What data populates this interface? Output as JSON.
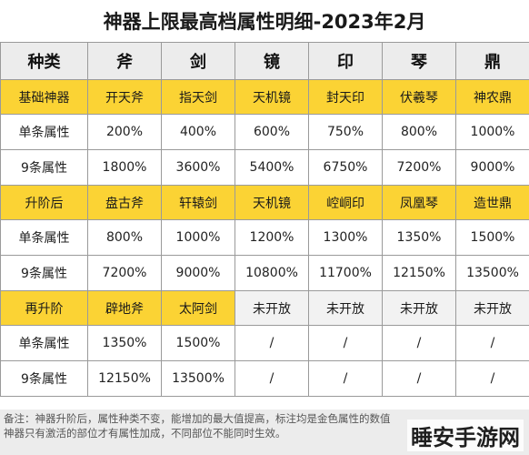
{
  "title": "神器上限最高档属性明细-2023年2月",
  "header": [
    "种类",
    "斧",
    "剑",
    "镜",
    "印",
    "琴",
    "鼎"
  ],
  "sections": [
    {
      "tier_label": "基础神器",
      "names": [
        "开天斧",
        "指天剑",
        "天机镜",
        "封天印",
        "伏羲琴",
        "神农鼎"
      ],
      "single_label": "单条属性",
      "single": [
        "200%",
        "400%",
        "600%",
        "750%",
        "800%",
        "1000%"
      ],
      "nine_label": "9条属性",
      "nine": [
        "1800%",
        "3600%",
        "5400%",
        "6750%",
        "7200%",
        "9000%"
      ]
    },
    {
      "tier_label": "升阶后",
      "names": [
        "盘古斧",
        "轩辕剑",
        "天机镜",
        "崆峒印",
        "凤凰琴",
        "造世鼎"
      ],
      "single_label": "单条属性",
      "single": [
        "800%",
        "1000%",
        "1200%",
        "1300%",
        "1350%",
        "1500%"
      ],
      "nine_label": "9条属性",
      "nine": [
        "7200%",
        "9000%",
        "10800%",
        "11700%",
        "12150%",
        "13500%"
      ]
    },
    {
      "tier_label": "再升阶",
      "names": [
        "辟地斧",
        "太阿剑",
        "未开放",
        "未开放",
        "未开放",
        "未开放"
      ],
      "single_label": "单条属性",
      "single": [
        "1350%",
        "1500%",
        "/",
        "/",
        "/",
        "/"
      ],
      "nine_label": "9条属性",
      "nine": [
        "12150%",
        "13500%",
        "/",
        "/",
        "/",
        "/"
      ]
    }
  ],
  "note_line1": "备注：神器升阶后，属性种类不变，能增加的最大值提高，标注均是金色属性的数值",
  "note_line2": "神器只有激活的部位才有属性加成，不同部位不能同时生效。",
  "watermark": "睡安手游网"
}
